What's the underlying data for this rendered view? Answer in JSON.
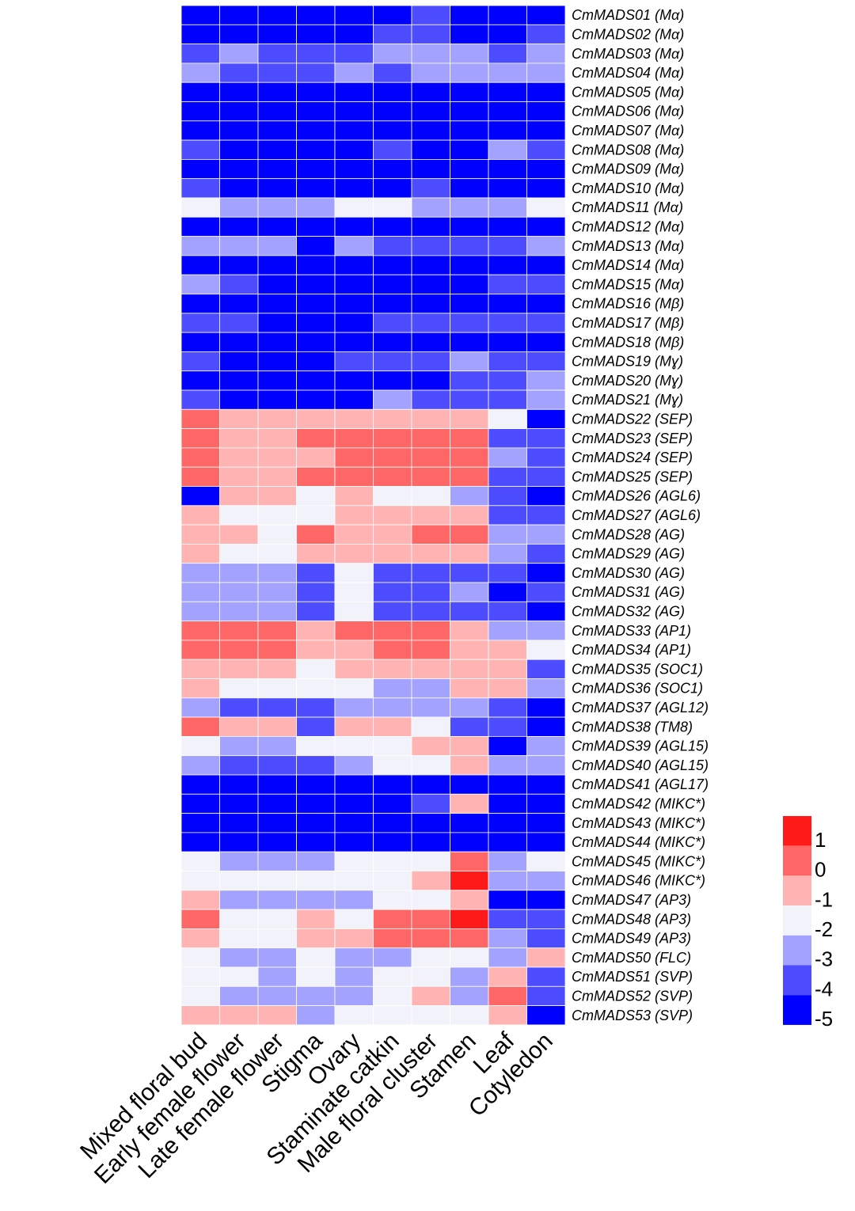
{
  "chart_data": {
    "type": "heatmap",
    "columns": [
      "Mixed floral bud",
      "Early female flower",
      "Late female flower",
      "Stigma",
      "Ovary",
      "Staminate catkin",
      "Male floral cluster",
      "Stamen",
      "Leaf",
      "Cotyledon"
    ],
    "rows": [
      "CmMADS01 (Mα)",
      "CmMADS02 (Mα)",
      "CmMADS03 (Mα)",
      "CmMADS04 (Mα)",
      "CmMADS05 (Mα)",
      "CmMADS06 (Mα)",
      "CmMADS07 (Mα)",
      "CmMADS08 (Mα)",
      "CmMADS09 (Mα)",
      "CmMADS10 (Mα)",
      "CmMADS11 (Mα)",
      "CmMADS12 (Mα)",
      "CmMADS13 (Mα)",
      "CmMADS14 (Mα)",
      "CmMADS15 (Mα)",
      "CmMADS16 (Mβ)",
      "CmMADS17 (Mβ)",
      "CmMADS18 (Mβ)",
      "CmMADS19 (Mɣ)",
      "CmMADS20 (Mɣ)",
      "CmMADS21 (Mɣ)",
      "CmMADS22 (SEP)",
      "CmMADS23 (SEP)",
      "CmMADS24 (SEP)",
      "CmMADS25 (SEP)",
      "CmMADS26 (AGL6)",
      "CmMADS27 (AGL6)",
      "CmMADS28 (AG)",
      "CmMADS29 (AG)",
      "CmMADS30 (AG)",
      "CmMADS31 (AG)",
      "CmMADS32 (AG)",
      "CmMADS33 (AP1)",
      "CmMADS34 (AP1)",
      "CmMADS35 (SOC1)",
      "CmMADS36 (SOC1)",
      "CmMADS37 (AGL12)",
      "CmMADS38 (TM8)",
      "CmMADS39 (AGL15)",
      "CmMADS40 (AGL15)",
      "CmMADS41 (AGL17)",
      "CmMADS42 (MIKC*)",
      "CmMADS43 (MIKC*)",
      "CmMADS44 (MIKC*)",
      "CmMADS45 (MIKC*)",
      "CmMADS46 (MIKC*)",
      "CmMADS47 (AP3)",
      "CmMADS48 (AP3)",
      "CmMADS49 (AP3)",
      "CmMADS50 (FLC)",
      "CmMADS51 (SVP)",
      "CmMADS52 (SVP)",
      "CmMADS53 (SVP)"
    ],
    "values": [
      [
        -5,
        -5,
        -5,
        -5,
        -5,
        -5,
        -4,
        -5,
        -5,
        -5
      ],
      [
        -5,
        -5,
        -5,
        -5,
        -5,
        -4,
        -4,
        -5,
        -5,
        -4
      ],
      [
        -4,
        -3,
        -4,
        -4,
        -4,
        -3,
        -3,
        -3,
        -4,
        -3
      ],
      [
        -3,
        -4,
        -4,
        -4,
        -3,
        -4,
        -3,
        -3,
        -3,
        -3
      ],
      [
        -5,
        -5,
        -5,
        -5,
        -5,
        -5,
        -5,
        -5,
        -5,
        -5
      ],
      [
        -5,
        -5,
        -5,
        -5,
        -5,
        -5,
        -5,
        -5,
        -5,
        -5
      ],
      [
        -5,
        -5,
        -5,
        -5,
        -5,
        -5,
        -5,
        -5,
        -5,
        -5
      ],
      [
        -4,
        -5,
        -5,
        -5,
        -5,
        -4,
        -5,
        -5,
        -3,
        -4
      ],
      [
        -5,
        -5,
        -5,
        -5,
        -5,
        -5,
        -5,
        -5,
        -5,
        -5
      ],
      [
        -4,
        -5,
        -5,
        -5,
        -5,
        -5,
        -4,
        -5,
        -5,
        -5
      ],
      [
        -2,
        -3,
        -3,
        -3,
        -2,
        -2,
        -3,
        -3,
        -3,
        -2
      ],
      [
        -5,
        -5,
        -5,
        -5,
        -5,
        -5,
        -5,
        -5,
        -5,
        -5
      ],
      [
        -3,
        -3,
        -3,
        -5,
        -3,
        -4,
        -4,
        -4,
        -4,
        -3
      ],
      [
        -5,
        -5,
        -5,
        -5,
        -5,
        -5,
        -5,
        -5,
        -5,
        -5
      ],
      [
        -3,
        -4,
        -5,
        -5,
        -5,
        -5,
        -5,
        -5,
        -4,
        -4
      ],
      [
        -5,
        -5,
        -5,
        -5,
        -5,
        -5,
        -5,
        -5,
        -5,
        -5
      ],
      [
        -4,
        -4,
        -5,
        -5,
        -5,
        -4,
        -4,
        -4,
        -4,
        -4
      ],
      [
        -5,
        -5,
        -5,
        -5,
        -5,
        -5,
        -5,
        -5,
        -5,
        -5
      ],
      [
        -4,
        -5,
        -5,
        -5,
        -4,
        -4,
        -4,
        -3,
        -4,
        -4
      ],
      [
        -5,
        -5,
        -5,
        -5,
        -5,
        -5,
        -5,
        -4,
        -4,
        -3
      ],
      [
        -4,
        -5,
        -5,
        -5,
        -5,
        -3,
        -4,
        -4,
        -4,
        -3
      ],
      [
        0,
        -1,
        -1,
        -1,
        -1,
        -1,
        -1,
        -1,
        -2,
        -5
      ],
      [
        0,
        -1,
        -1,
        0,
        0,
        0,
        0,
        0,
        -4,
        -4
      ],
      [
        0,
        -1,
        -1,
        -1,
        0,
        0,
        0,
        0,
        -3,
        -4
      ],
      [
        0,
        -1,
        -1,
        0,
        0,
        0,
        0,
        0,
        -4,
        -4
      ],
      [
        -5,
        -1,
        -1,
        -2,
        -1,
        -2,
        -2,
        -3,
        -4,
        -5
      ],
      [
        -1,
        -2,
        -2,
        -2,
        -1,
        -1,
        -1,
        -1,
        -4,
        -4
      ],
      [
        -1,
        -1,
        -2,
        0,
        -1,
        -1,
        0,
        0,
        -3,
        -3
      ],
      [
        -1,
        -2,
        -2,
        -1,
        -1,
        -1,
        -1,
        -1,
        -3,
        -4
      ],
      [
        -3,
        -3,
        -3,
        -4,
        -2,
        -4,
        -4,
        -4,
        -4,
        -5
      ],
      [
        -3,
        -3,
        -3,
        -4,
        -2,
        -4,
        -4,
        -3,
        -5,
        -4
      ],
      [
        -3,
        -3,
        -3,
        -4,
        -2,
        -4,
        -4,
        -4,
        -4,
        -5
      ],
      [
        0,
        0,
        0,
        -1,
        0,
        0,
        0,
        -1,
        -3,
        -3
      ],
      [
        0,
        0,
        0,
        -1,
        -1,
        0,
        0,
        -1,
        -1,
        -2
      ],
      [
        -1,
        -1,
        -1,
        -2,
        -1,
        -1,
        -1,
        -1,
        -1,
        -4
      ],
      [
        -1,
        -2,
        -2,
        -2,
        -2,
        -3,
        -3,
        -1,
        -1,
        -3
      ],
      [
        -3,
        -4,
        -4,
        -4,
        -3,
        -3,
        -3,
        -3,
        -4,
        -5
      ],
      [
        0,
        -1,
        -1,
        -4,
        -1,
        -1,
        -2,
        -4,
        -4,
        -5
      ],
      [
        -2,
        -3,
        -3,
        -2,
        -2,
        -2,
        -1,
        -1,
        -5,
        -3
      ],
      [
        -3,
        -4,
        -4,
        -4,
        -3,
        -2,
        -2,
        -1,
        -3,
        -3
      ],
      [
        -5,
        -5,
        -5,
        -5,
        -5,
        -5,
        -5,
        -5,
        -5,
        -5
      ],
      [
        -5,
        -5,
        -5,
        -5,
        -5,
        -5,
        -4,
        -1,
        -5,
        -5
      ],
      [
        -5,
        -5,
        -5,
        -5,
        -5,
        -5,
        -5,
        -5,
        -5,
        -5
      ],
      [
        -5,
        -5,
        -5,
        -5,
        -5,
        -5,
        -5,
        -5,
        -5,
        -5
      ],
      [
        -2,
        -3,
        -3,
        -3,
        -2,
        -2,
        -2,
        0,
        -3,
        -2
      ],
      [
        -2,
        -2,
        -2,
        -2,
        -2,
        -2,
        -1,
        1,
        -3,
        -3
      ],
      [
        -1,
        -3,
        -3,
        -3,
        -3,
        -2,
        -2,
        -1,
        -5,
        -5
      ],
      [
        0,
        -2,
        -2,
        -1,
        -2,
        0,
        0,
        1,
        -4,
        -4
      ],
      [
        -1,
        -2,
        -2,
        -1,
        -1,
        0,
        0,
        0,
        -3,
        -4
      ],
      [
        -2,
        -3,
        -3,
        -2,
        -3,
        -3,
        -2,
        -2,
        -3,
        -1
      ],
      [
        -2,
        -2,
        -3,
        -2,
        -3,
        -2,
        -2,
        -3,
        -1,
        -4
      ],
      [
        -2,
        -3,
        -3,
        -3,
        -3,
        -2,
        -1,
        -3,
        0,
        -4
      ],
      [
        -1,
        -1,
        -1,
        -3,
        -2,
        -2,
        -2,
        -2,
        -1,
        -5
      ]
    ],
    "legend": {
      "labels": [
        "1",
        "0",
        "-1",
        "-2",
        "-3",
        "-4",
        "-5"
      ],
      "levels": [
        1,
        0,
        -1,
        -2,
        -3,
        -4,
        -5
      ],
      "colors": [
        "#ff1a1a",
        "#ff6666",
        "#ffb3b3",
        "#f2f2fb",
        "#a3a3ff",
        "#4d4dff",
        "#0000ff"
      ],
      "placement": "right"
    },
    "colors": {
      "1": "#ff1a1a",
      "0": "#ff6666",
      "-1": "#ffb3b3",
      "-2": "#f2f2fb",
      "-3": "#a3a3ff",
      "-4": "#4d4dff",
      "-5": "#0000ff"
    },
    "grid": true,
    "title": "",
    "xlabel": "",
    "ylabel": ""
  }
}
